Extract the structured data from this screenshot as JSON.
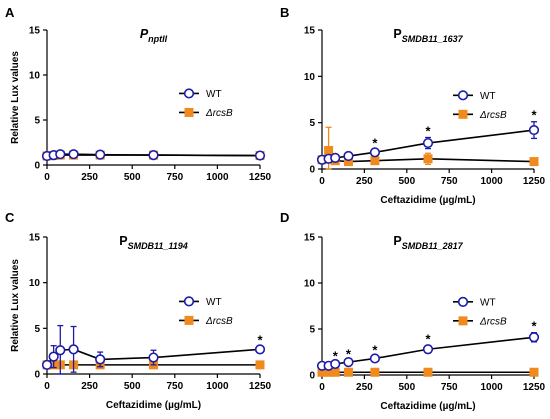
{
  "colors": {
    "wt": "#1c1ca8",
    "rcsb": "#f08a1c",
    "axis": "#000000"
  },
  "chart_data": [
    {
      "letter": "A",
      "title": {
        "prefix": "P",
        "sub": "nptII",
        "prefix_italic": true
      },
      "type": "line",
      "xlabel": "",
      "ylabel": "Relative Lux values",
      "xlim": [
        0,
        1250
      ],
      "ylim": [
        0,
        15
      ],
      "xticks": [
        0,
        250,
        500,
        750,
        1000,
        1250
      ],
      "yticks": [
        0,
        5,
        10,
        15
      ],
      "x": [
        0,
        39,
        78,
        156,
        312,
        625,
        1250
      ],
      "legend": {
        "position": "middle-right"
      },
      "series": [
        {
          "name": "WT",
          "key": "wt",
          "marker": "circle",
          "values": [
            1.0,
            1.1,
            1.2,
            1.2,
            1.15,
            1.1,
            1.05
          ],
          "errors": [
            0.1,
            0.15,
            0.15,
            0.15,
            0.15,
            0.1,
            0.1
          ]
        },
        {
          "name": "ΔrcsB",
          "key": "rcsb",
          "marker": "square",
          "values": [
            1.0,
            1.05,
            1.1,
            1.1,
            1.1,
            1.1,
            1.05
          ],
          "errors": [
            0.1,
            0.1,
            0.1,
            0.1,
            0.1,
            0.1,
            0.1
          ]
        }
      ],
      "stars": []
    },
    {
      "letter": "B",
      "title": {
        "prefix": "P",
        "sub": "SMDB11_1637",
        "prefix_italic": false
      },
      "type": "line",
      "xlabel": "Ceftazidime (µg/mL)",
      "ylabel": "",
      "xlim": [
        0,
        1250
      ],
      "ylim": [
        0,
        15
      ],
      "xticks": [
        0,
        250,
        500,
        750,
        1000,
        1250
      ],
      "yticks": [
        0,
        5,
        10,
        15
      ],
      "x": [
        0,
        39,
        78,
        156,
        312,
        625,
        1250
      ],
      "legend": {
        "position": "middle-right"
      },
      "series": [
        {
          "name": "WT",
          "key": "wt",
          "marker": "circle",
          "values": [
            1.0,
            1.1,
            1.2,
            1.4,
            1.8,
            2.8,
            4.2
          ],
          "errors": [
            0.1,
            0.15,
            0.2,
            0.2,
            0.3,
            0.6,
            0.9
          ]
        },
        {
          "name": "ΔrcsB",
          "key": "rcsb",
          "marker": "square",
          "values": [
            1.0,
            2.0,
            0.9,
            0.8,
            0.9,
            1.1,
            0.8
          ],
          "errors": [
            0.1,
            2.5,
            0.2,
            0.2,
            0.4,
            0.6,
            0.2
          ]
        }
      ],
      "stars": [
        312,
        625,
        1250
      ]
    },
    {
      "letter": "C",
      "title": {
        "prefix": "P",
        "sub": "SMDB11_1194",
        "prefix_italic": false
      },
      "type": "line",
      "xlabel": "Ceftazidime (µg/mL)",
      "ylabel": "Relative Lux values",
      "xlim": [
        0,
        1250
      ],
      "ylim": [
        0,
        15
      ],
      "xticks": [
        0,
        250,
        500,
        750,
        1000,
        1250
      ],
      "yticks": [
        0,
        5,
        10,
        15
      ],
      "x": [
        0,
        39,
        78,
        156,
        312,
        625,
        1250
      ],
      "legend": {
        "position": "middle-right"
      },
      "series": [
        {
          "name": "WT",
          "key": "wt",
          "marker": "circle",
          "values": [
            1.0,
            1.9,
            2.6,
            2.7,
            1.6,
            1.8,
            2.7
          ],
          "errors": [
            0.1,
            1.2,
            2.7,
            2.5,
            0.8,
            0.8,
            0.3
          ]
        },
        {
          "name": "ΔrcsB",
          "key": "rcsb",
          "marker": "square",
          "values": [
            1.0,
            1.0,
            1.0,
            1.0,
            1.0,
            1.0,
            1.0
          ],
          "errors": [
            0.1,
            0.1,
            0.1,
            0.1,
            0.1,
            0.1,
            0.1
          ]
        }
      ],
      "stars": [
        1250
      ]
    },
    {
      "letter": "D",
      "title": {
        "prefix": "P",
        "sub": "SMDB11_2817",
        "prefix_italic": false
      },
      "type": "line",
      "xlabel": "Ceftazidime (µg/mL)",
      "ylabel": "",
      "xlim": [
        0,
        1250
      ],
      "ylim": [
        0,
        15
      ],
      "xticks": [
        0,
        250,
        500,
        750,
        1000,
        1250
      ],
      "yticks": [
        0,
        5,
        10,
        15
      ],
      "x": [
        0,
        39,
        78,
        156,
        312,
        625,
        1250
      ],
      "legend": {
        "position": "middle-right"
      },
      "series": [
        {
          "name": "WT",
          "key": "wt",
          "marker": "circle",
          "values": [
            1.0,
            1.0,
            1.2,
            1.4,
            1.8,
            2.8,
            4.1
          ],
          "errors": [
            0.1,
            0.1,
            0.15,
            0.15,
            0.2,
            0.4,
            0.5
          ]
        },
        {
          "name": "ΔrcsB",
          "key": "rcsb",
          "marker": "square",
          "values": [
            0.3,
            0.3,
            0.3,
            0.3,
            0.3,
            0.3,
            0.3
          ],
          "errors": [
            0.05,
            0.05,
            0.05,
            0.05,
            0.05,
            0.05,
            0.05
          ]
        }
      ],
      "stars": [
        78,
        156,
        312,
        625,
        1250
      ]
    }
  ]
}
